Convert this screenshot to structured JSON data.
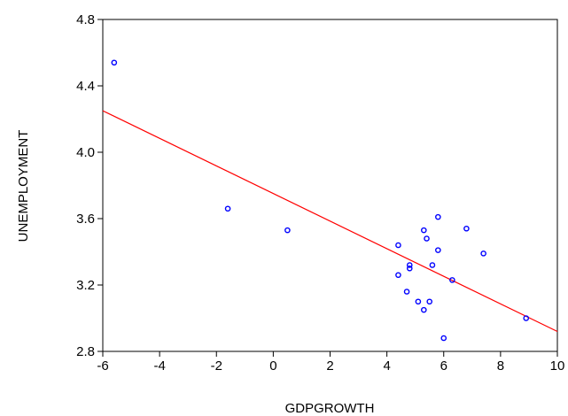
{
  "chart_data": {
    "type": "scatter",
    "title": "",
    "xlabel": "GDPGROWTH",
    "ylabel": "UNEMPLOYMENT",
    "xlim": [
      -6,
      10
    ],
    "ylim": [
      2.8,
      4.8
    ],
    "xticks": [
      -6,
      -4,
      -2,
      0,
      2,
      4,
      6,
      8,
      10
    ],
    "xtick_labels": [
      "-6",
      "-4",
      "-2",
      "0",
      "2",
      "4",
      "6",
      "8",
      "10"
    ],
    "yticks": [
      2.8,
      3.2,
      3.6,
      4.0,
      4.4,
      4.8
    ],
    "ytick_labels": [
      "2.8",
      "3.2",
      "3.6",
      "4.0",
      "4.4",
      "4.8"
    ],
    "grid": false,
    "legend": "none",
    "point_color": "#0000ff",
    "fit_line_color": "#ff0000",
    "points": [
      {
        "x": -5.6,
        "y": 4.54
      },
      {
        "x": -1.6,
        "y": 3.66
      },
      {
        "x": 0.5,
        "y": 3.53
      },
      {
        "x": 4.4,
        "y": 3.44
      },
      {
        "x": 4.4,
        "y": 3.26
      },
      {
        "x": 4.7,
        "y": 3.16
      },
      {
        "x": 4.8,
        "y": 3.32
      },
      {
        "x": 4.8,
        "y": 3.3
      },
      {
        "x": 5.1,
        "y": 3.1
      },
      {
        "x": 5.3,
        "y": 3.53
      },
      {
        "x": 5.3,
        "y": 3.05
      },
      {
        "x": 5.4,
        "y": 3.48
      },
      {
        "x": 5.5,
        "y": 3.1
      },
      {
        "x": 5.6,
        "y": 3.32
      },
      {
        "x": 5.8,
        "y": 3.61
      },
      {
        "x": 5.8,
        "y": 3.41
      },
      {
        "x": 6.0,
        "y": 2.88
      },
      {
        "x": 6.3,
        "y": 3.23
      },
      {
        "x": 6.8,
        "y": 3.54
      },
      {
        "x": 7.4,
        "y": 3.39
      },
      {
        "x": 8.9,
        "y": 3.0
      }
    ],
    "fit_line": {
      "x": [
        -6,
        10
      ],
      "y": [
        4.25,
        2.92
      ]
    }
  }
}
